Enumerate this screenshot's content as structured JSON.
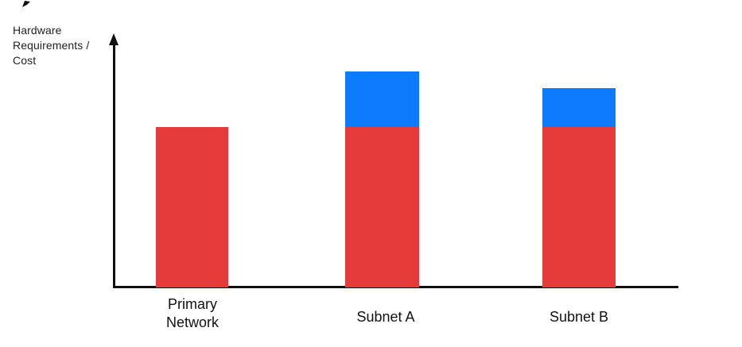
{
  "chart_data": {
    "type": "bar",
    "stacked": true,
    "title": "",
    "ylabel": "Hardware Requirements / Cost",
    "xlabel": "",
    "categories": [
      "Primary Network",
      "Subnet A",
      "Subnet B"
    ],
    "series": [
      {
        "name": "red",
        "color": "#E53B3B",
        "values": [
          202,
          202,
          202
        ]
      },
      {
        "name": "blue",
        "color": "#0E7AFE",
        "values": [
          0,
          70,
          49
        ]
      }
    ],
    "ylim": [
      0,
      312
    ],
    "legend": false,
    "grid": false,
    "numeric_ticks": false,
    "y_axis_arrow": true,
    "units": "relative-pixel-height"
  },
  "colors": {
    "background": "#FFFFFF",
    "axis": "#111111",
    "text": "#1F1F1F",
    "bar_red": "#E53B3B",
    "bar_blue": "#0E7AFE"
  }
}
